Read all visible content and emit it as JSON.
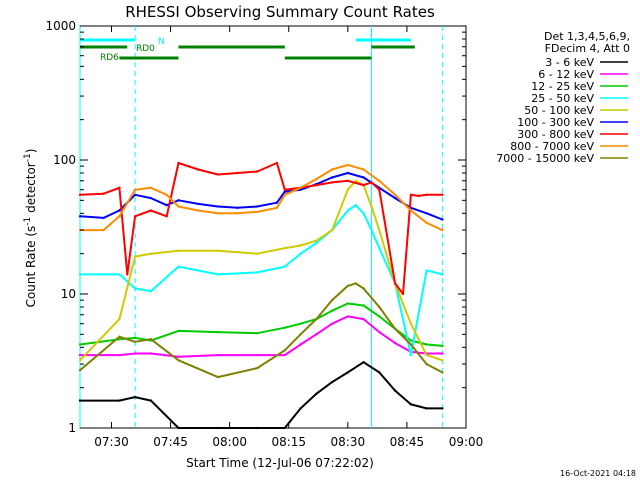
{
  "chart_data": {
    "type": "line",
    "title": "RHESSI Observing Summary Count Rates",
    "xlabel": "Start Time (12-Jul-06 07:22:02)",
    "ylabel_main": "Count Rate (s",
    "ylabel_sup1": "-1",
    "ylabel_mid": " detector",
    "ylabel_sup2": "-1",
    "ylabel_end": ")",
    "ylabel": "Count Rate (s-1 detector-1)",
    "yscale": "log",
    "ylim": [
      1,
      1000
    ],
    "xlim_minutes": [
      0,
      98
    ],
    "x_tick_labels": [
      "07:30",
      "07:45",
      "08:00",
      "08:15",
      "08:30",
      "08:45",
      "09:00"
    ],
    "x_tick_minutes": [
      8,
      23,
      38,
      53,
      68,
      83,
      98
    ],
    "y_tick_labels": [
      "1",
      "10",
      "100",
      "1000"
    ],
    "y_tick_values": [
      1,
      10,
      100,
      1000
    ],
    "legend_header": [
      "Det 1,3,4,5,6,9,",
      "FDecim 4, Att 0"
    ],
    "legend_position": "right",
    "timestamp": "16-Oct-2021 04:18",
    "flags": [
      {
        "name": "N",
        "color": "#00ffff",
        "segments": [
          [
            0,
            14
          ],
          [
            70,
            84
          ]
        ]
      },
      {
        "name": "RD0",
        "color": "#008000",
        "segments": [
          [
            0,
            12
          ],
          [
            25,
            52
          ],
          [
            74,
            85
          ]
        ]
      },
      {
        "name": "RD6",
        "color": "#008000",
        "segments": [
          [
            10,
            25
          ],
          [
            52,
            74
          ]
        ]
      }
    ],
    "night_boundaries": [
      {
        "minutes": 0,
        "style": "solid"
      },
      {
        "minutes": 74,
        "style": "solid"
      }
    ],
    "saa_boundaries": [
      {
        "minutes": 14,
        "style": "dashed"
      },
      {
        "minutes": 92,
        "style": "dashed"
      }
    ],
    "series": [
      {
        "name": "3 - 6 keV",
        "color": "#000000",
        "x": [
          0,
          10,
          14,
          18,
          25,
          35,
          45,
          52,
          56,
          60,
          64,
          68,
          72,
          76,
          80,
          84,
          88,
          92
        ],
        "y": [
          1.6,
          1.6,
          1.7,
          1.6,
          1.0,
          1.0,
          1.0,
          1.0,
          1.4,
          1.8,
          2.2,
          2.6,
          3.1,
          2.6,
          1.9,
          1.5,
          1.4,
          1.4
        ]
      },
      {
        "name": "6 - 12 keV",
        "color": "#ff00ff",
        "x": [
          0,
          10,
          14,
          18,
          25,
          35,
          45,
          52,
          56,
          60,
          64,
          68,
          72,
          76,
          80,
          84,
          88,
          92
        ],
        "y": [
          3.5,
          3.5,
          3.6,
          3.6,
          3.4,
          3.5,
          3.5,
          3.5,
          4.2,
          5.0,
          6.0,
          6.8,
          6.5,
          5.2,
          4.3,
          3.7,
          3.6,
          3.6
        ]
      },
      {
        "name": "12 - 25 keV",
        "color": "#00cc00",
        "x": [
          0,
          10,
          14,
          18,
          25,
          35,
          45,
          52,
          56,
          60,
          64,
          68,
          72,
          76,
          80,
          84,
          88,
          92
        ],
        "y": [
          4.2,
          4.6,
          4.7,
          4.5,
          5.3,
          5.2,
          5.1,
          5.6,
          6.0,
          6.5,
          7.5,
          8.5,
          8.2,
          6.8,
          5.5,
          4.5,
          4.2,
          4.1
        ]
      },
      {
        "name": "25 - 50 keV",
        "color": "#00ffff",
        "x": [
          0,
          10,
          14,
          18,
          25,
          35,
          45,
          52,
          56,
          60,
          64,
          68,
          70,
          72,
          74,
          76,
          80,
          84,
          88,
          92
        ],
        "y": [
          14,
          14,
          11,
          10.5,
          16,
          14,
          14.5,
          16,
          20,
          24,
          30,
          42,
          46,
          40,
          30,
          22,
          12,
          3.5,
          15,
          14
        ]
      },
      {
        "name": "50 - 100 keV",
        "color": "#cccc00",
        "x": [
          0,
          10,
          14,
          18,
          25,
          35,
          45,
          52,
          56,
          60,
          64,
          68,
          70,
          72,
          74,
          76,
          80,
          84,
          88,
          92
        ],
        "y": [
          3.2,
          6.5,
          19,
          20,
          21,
          21,
          20,
          22,
          23,
          25,
          30,
          60,
          70,
          65,
          45,
          30,
          12,
          6,
          3.5,
          3.2
        ]
      },
      {
        "name": "100 - 300 keV",
        "color": "#0000ff",
        "x": [
          0,
          6,
          10,
          14,
          18,
          22,
          25,
          30,
          35,
          40,
          45,
          50,
          52,
          56,
          60,
          64,
          68,
          72,
          76,
          80,
          84,
          88,
          92
        ],
        "y": [
          38,
          37,
          42,
          55,
          52,
          46,
          50,
          47,
          45,
          44,
          45,
          48,
          58,
          60,
          66,
          74,
          80,
          74,
          62,
          52,
          44,
          40,
          36
        ]
      },
      {
        "name": "300 - 800 keV",
        "color": "#ff0000",
        "x": [
          0,
          6,
          10,
          12,
          14,
          18,
          22,
          25,
          30,
          35,
          40,
          45,
          50,
          52,
          56,
          60,
          64,
          68,
          72,
          74,
          76,
          80,
          82,
          84,
          86,
          88,
          92
        ],
        "y": [
          55,
          56,
          62,
          14,
          38,
          42,
          38,
          95,
          85,
          78,
          80,
          82,
          95,
          60,
          62,
          65,
          68,
          70,
          65,
          68,
          60,
          12,
          10,
          55,
          54,
          55,
          55
        ]
      },
      {
        "name": "800 - 7000 keV",
        "color": "#ff8c00",
        "x": [
          0,
          6,
          10,
          14,
          18,
          22,
          25,
          30,
          35,
          40,
          45,
          50,
          52,
          56,
          60,
          64,
          68,
          72,
          76,
          80,
          84,
          88,
          92
        ],
        "y": [
          30,
          30,
          38,
          60,
          62,
          55,
          45,
          42,
          40,
          40,
          41,
          44,
          55,
          62,
          72,
          85,
          92,
          85,
          70,
          55,
          42,
          34,
          30
        ]
      },
      {
        "name": "7000 - 15000 keV",
        "color": "#808000",
        "x": [
          0,
          10,
          14,
          18,
          25,
          35,
          45,
          52,
          56,
          60,
          64,
          68,
          70,
          72,
          76,
          80,
          84,
          88,
          92
        ],
        "y": [
          2.7,
          4.8,
          4.4,
          4.6,
          3.2,
          2.4,
          2.8,
          3.8,
          5.0,
          6.5,
          9.0,
          11.5,
          12,
          11,
          8,
          5.5,
          4.2,
          3.0,
          2.6
        ]
      }
    ]
  }
}
